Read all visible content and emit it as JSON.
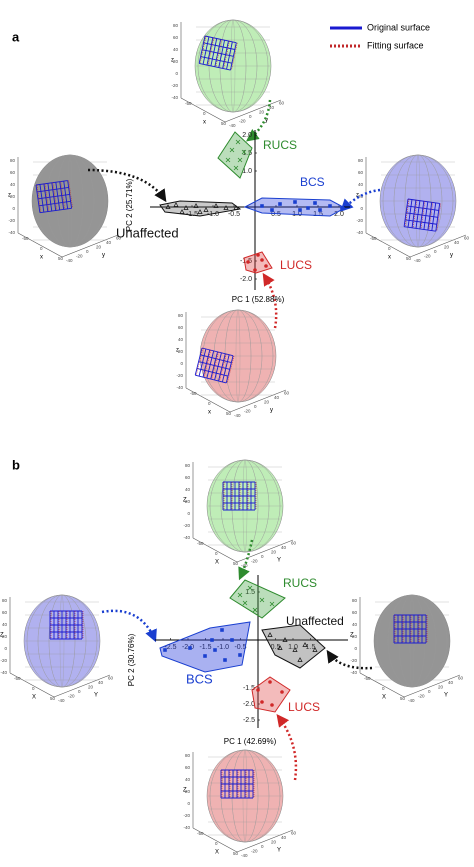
{
  "legend": {
    "original": "Original surface",
    "fitting": "Fitting surface"
  },
  "panels": [
    {
      "label": "a",
      "x_axis": "PC 1 (52.88%)",
      "y_axis": "PC 2 (25.71%)",
      "groups": {
        "top": "RUCS",
        "right": "BCS",
        "left": "Unaffected",
        "bottom": "LUCS"
      },
      "x_ticks": [
        "-1.5",
        "-1.0",
        "-0.5",
        "0.5",
        "1.0",
        "1.5",
        "2.0"
      ],
      "y_ticks": [
        "2.0",
        "1.5",
        "1.0",
        "-1.5",
        "-2.0"
      ],
      "head_axes": {
        "z": "z",
        "x": "x",
        "y": "y",
        "z_ticks": [
          "80",
          "60",
          "40",
          "20",
          "0",
          "-20",
          "-40"
        ],
        "x_ticks": [
          "-50",
          "0",
          "50"
        ],
        "y_ticks": [
          "-40",
          "-20",
          "0",
          "20",
          "40",
          "60"
        ]
      }
    },
    {
      "label": "b",
      "x_axis": "PC 1 (42.69%)",
      "y_axis": "PC 2 (30.76%)",
      "groups": {
        "top": "RUCS",
        "right": "Unaffected",
        "left": "BCS",
        "bottom": "LUCS"
      },
      "x_ticks": [
        "-2.5",
        "-2.0",
        "-1.5",
        "-1.0",
        "-0.5",
        "0.5",
        "1.0",
        "1.5"
      ],
      "y_ticks": [
        "1.5",
        "-1.5",
        "-2.0",
        "-2.5"
      ],
      "head_axes": {
        "z": "Z",
        "x": "X",
        "y": "Y",
        "z_ticks": [
          "80",
          "60",
          "40",
          "20",
          "0",
          "-20",
          "-40"
        ],
        "x_ticks": [
          "-50",
          "0",
          "50"
        ],
        "y_ticks": [
          "-40",
          "-20",
          "0",
          "20",
          "40",
          "60"
        ]
      }
    }
  ]
}
